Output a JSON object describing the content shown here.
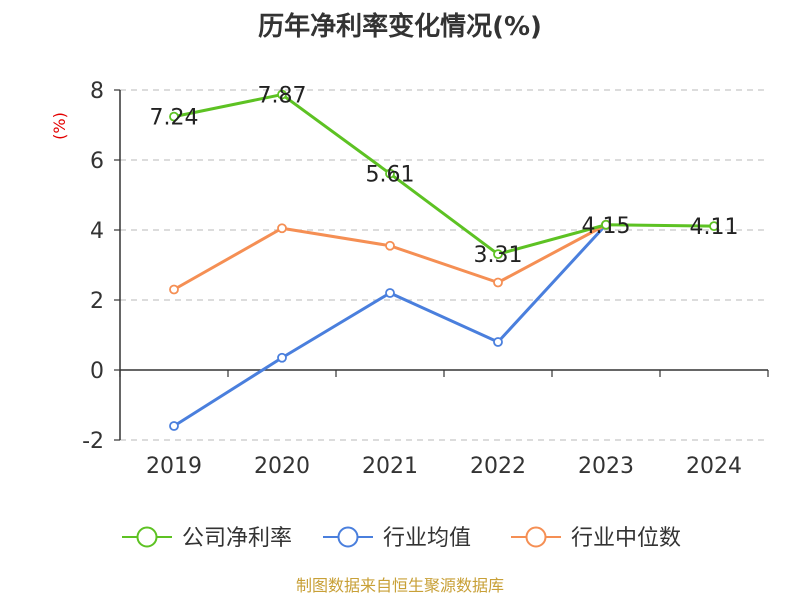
{
  "chart_data": {
    "type": "line",
    "title": "历年净利率变化情况(%)",
    "ylabel": "(%)",
    "categories": [
      "2019",
      "2020",
      "2021",
      "2022",
      "2023",
      "2024"
    ],
    "ylim": [
      -2,
      8
    ],
    "yticks": [
      -2,
      0,
      2,
      4,
      6,
      8
    ],
    "ytick_labels": [
      "-2",
      "0",
      "2",
      "4",
      "6",
      "8"
    ],
    "grid": true,
    "legend_position": "bottom",
    "series": [
      {
        "name": "公司净利率",
        "color": "#5dc223",
        "values": [
          7.24,
          7.87,
          5.61,
          3.31,
          4.15,
          4.11
        ],
        "labels": [
          "7.24",
          "7.87",
          "5.61",
          "3.31",
          "4.15",
          "4.11"
        ]
      },
      {
        "name": "行业均值",
        "color": "#4a7fdd",
        "values": [
          -1.6,
          0.35,
          2.2,
          0.8,
          4.15,
          null
        ]
      },
      {
        "name": "行业中位数",
        "color": "#f58f54",
        "values": [
          2.3,
          4.05,
          3.55,
          2.5,
          4.15,
          null
        ]
      }
    ]
  },
  "source": "制图数据来自恒生聚源数据库"
}
